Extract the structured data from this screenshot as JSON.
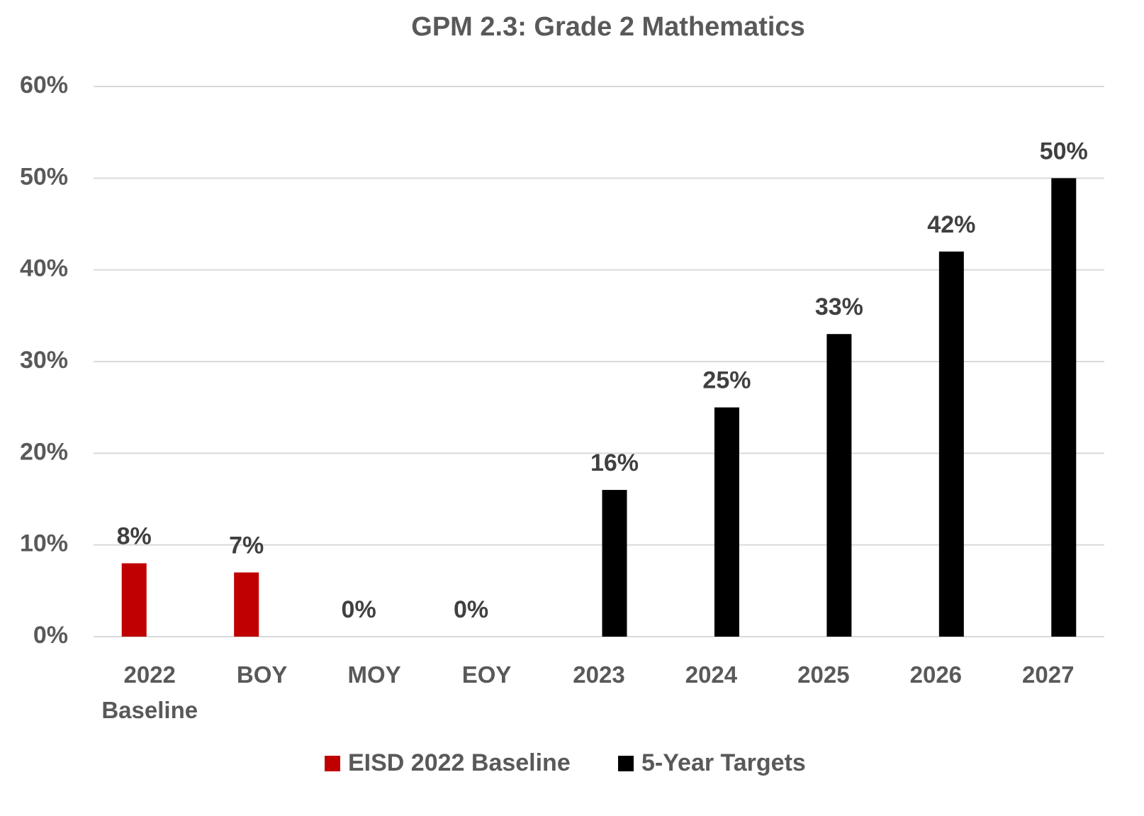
{
  "chart_data": {
    "type": "bar",
    "title": "GPM 2.3: Grade 2 Mathematics",
    "categories": [
      "2022 Baseline",
      "BOY",
      "MOY",
      "EOY",
      "2023",
      "2024",
      "2025",
      "2026",
      "2027"
    ],
    "series": [
      {
        "name": "EISD 2022 Baseline",
        "color": "#c00000",
        "values": [
          8,
          7,
          0,
          0,
          null,
          null,
          null,
          null,
          null
        ],
        "value_labels": [
          "8%",
          "7%",
          "0%",
          "0%",
          null,
          null,
          null,
          null,
          null
        ]
      },
      {
        "name": "5-Year Targets",
        "color": "#000000",
        "values": [
          null,
          null,
          null,
          null,
          16,
          25,
          33,
          42,
          50
        ],
        "value_labels": [
          null,
          null,
          null,
          null,
          "16%",
          "25%",
          "33%",
          "42%",
          "50%"
        ]
      }
    ],
    "ylim": [
      0,
      60
    ],
    "yticks": [
      {
        "value": 0,
        "label": "0%"
      },
      {
        "value": 10,
        "label": "10%"
      },
      {
        "value": 20,
        "label": "20%"
      },
      {
        "value": 30,
        "label": "30%"
      },
      {
        "value": 40,
        "label": "40%"
      },
      {
        "value": 50,
        "label": "50%"
      },
      {
        "value": 60,
        "label": "60%"
      }
    ],
    "grid": true,
    "legend": "bottom"
  }
}
